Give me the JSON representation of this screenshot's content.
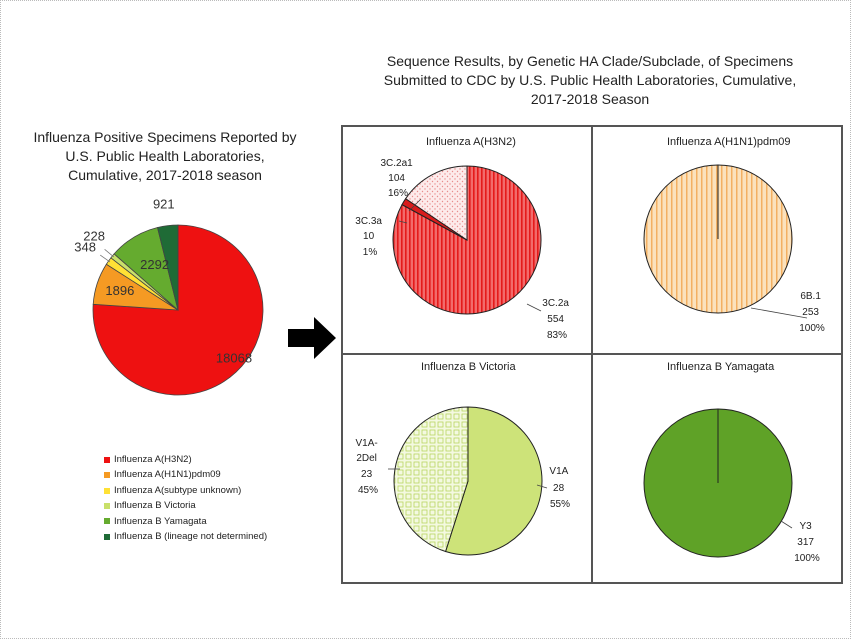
{
  "left_chart": {
    "title_lines": [
      "Influenza Positive Specimens Reported by",
      "U.S. Public Health Laboratories,",
      "Cumulative, 2017-2018 season"
    ]
  },
  "right_section": {
    "title_lines": [
      "Sequence Results, by Genetic HA Clade/Subclade, of Specimens",
      "Submitted to CDC by U.S. Public Health Laboratories, Cumulative,",
      "2017-2018 Season"
    ]
  },
  "colors": {
    "h3n2": "#ee1111",
    "h1n1": "#f59a23",
    "subtype_unknown": "#ffe135",
    "b_victoria": "#c9e06a",
    "b_yamagata": "#65ab2f",
    "b_lineage_nd": "#1f6b36",
    "h3n2_light": "#f05a5a",
    "h1n1_light": "#f7d099",
    "yamagata_panel": "#5fa227",
    "victoria_panel": "#cde379"
  },
  "chart_data": [
    {
      "type": "pie",
      "title": "Influenza Positive Specimens Reported by U.S. Public Health Laboratories, Cumulative, 2017-2018 season",
      "categories": [
        "Influenza A(H3N2)",
        "Influenza A(H1N1)pdm09",
        "Influenza A(subtype unknown)",
        "Influenza B Victoria",
        "Influenza B Yamagata",
        "Influenza B (lineage not determined)"
      ],
      "values": [
        18068,
        1896,
        348,
        228,
        2292,
        921
      ],
      "labels": [
        "18068",
        "1896",
        "348",
        "228",
        "2292",
        "921"
      ],
      "legend": "bottom"
    },
    {
      "type": "pie",
      "title": "Influenza A(H3N2)",
      "categories": [
        "3C.2a",
        "3C.3a",
        "3C.2a1"
      ],
      "values": [
        554,
        10,
        104
      ],
      "percents": [
        "83%",
        "1%",
        "16%"
      ]
    },
    {
      "type": "pie",
      "title": "Influenza A(H1N1)pdm09",
      "categories": [
        "6B.1"
      ],
      "values": [
        253
      ],
      "percents": [
        "100%"
      ]
    },
    {
      "type": "pie",
      "title": "Influenza B Victoria",
      "categories": [
        "V1A",
        "V1A-2Del"
      ],
      "values": [
        28,
        23
      ],
      "percents": [
        "55%",
        "45%"
      ]
    },
    {
      "type": "pie",
      "title": "Influenza B Yamagata",
      "categories": [
        "Y3"
      ],
      "values": [
        317
      ],
      "percents": [
        "100%"
      ]
    }
  ],
  "right_panel_labels": {
    "h3n2": {
      "l3c2a1": [
        "3C.2a1",
        "104",
        "16%"
      ],
      "l3c3a": [
        "3C.3a",
        "10",
        "1%"
      ],
      "l3c2a": [
        "3C.2a",
        "554",
        "83%"
      ]
    },
    "h1n1": {
      "l6b1": [
        "6B.1",
        "253",
        "100%"
      ]
    },
    "victoria": {
      "lv1a2del": [
        "V1A-",
        "2Del",
        "23",
        "45%"
      ],
      "lv1a": [
        "V1A",
        "28",
        "55%"
      ]
    },
    "yamagata": {
      "ly3": [
        "Y3",
        "317",
        "100%"
      ]
    }
  }
}
